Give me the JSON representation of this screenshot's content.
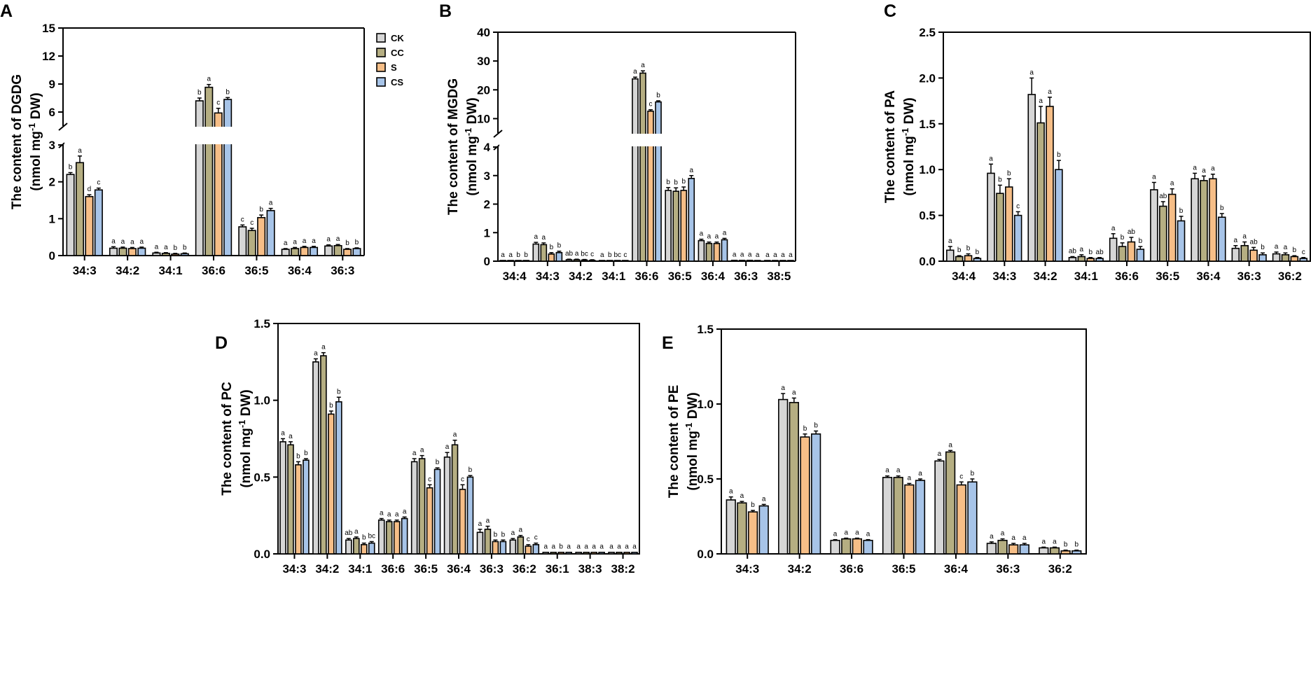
{
  "figure_legend": {
    "entries": [
      {
        "name": "CK",
        "color": "#d6d6d6"
      },
      {
        "name": "CC",
        "color": "#b5ae82"
      },
      {
        "name": "S",
        "color": "#f6be87"
      },
      {
        "name": "CS",
        "color": "#a7c4e8"
      }
    ]
  },
  "chart_data": [
    {
      "panel": "A",
      "type": "bar",
      "ylabel_line1": "The content of DGDG",
      "ylabel_line2_pre": "(nmol mg",
      "ylabel_sup": "-1",
      "ylabel_line2_post": " DW)",
      "categories": [
        "34:3",
        "34:2",
        "34:1",
        "36:6",
        "36:5",
        "36:4",
        "36:3"
      ],
      "series": [
        {
          "name": "CK",
          "values": [
            2.2,
            0.2,
            0.07,
            7.2,
            0.78,
            0.17,
            0.26
          ],
          "errors": [
            0.05,
            0.04,
            0.02,
            0.3,
            0.05,
            0.02,
            0.03
          ],
          "letters": [
            "b",
            "a",
            "a",
            "b",
            "c",
            "a",
            "a"
          ]
        },
        {
          "name": "CC",
          "values": [
            2.52,
            0.2,
            0.06,
            8.65,
            0.68,
            0.19,
            0.27
          ],
          "errors": [
            0.18,
            0.03,
            0.02,
            0.3,
            0.06,
            0.03,
            0.03
          ],
          "letters": [
            "a",
            "a",
            "a",
            "a",
            "c",
            "a",
            "a"
          ]
        },
        {
          "name": "S",
          "values": [
            1.6,
            0.19,
            0.04,
            5.9,
            1.03,
            0.22,
            0.17
          ],
          "errors": [
            0.05,
            0.03,
            0.02,
            0.5,
            0.07,
            0.03,
            0.02
          ],
          "letters": [
            "d",
            "a",
            "b",
            "c",
            "b",
            "a",
            "b"
          ]
        },
        {
          "name": "CS",
          "values": [
            1.78,
            0.2,
            0.05,
            7.35,
            1.22,
            0.22,
            0.19
          ],
          "errors": [
            0.05,
            0.03,
            0.02,
            0.2,
            0.06,
            0.03,
            0.02
          ],
          "letters": [
            "c",
            "a",
            "b",
            "b",
            "a",
            "a",
            "b"
          ]
        }
      ],
      "y_axis": {
        "lower": {
          "range": [
            0,
            3
          ],
          "ticks": [
            0,
            1,
            2,
            3
          ],
          "tick_labels": [
            "0",
            "1",
            "2",
            "3"
          ]
        },
        "upper": {
          "range": [
            4.5,
            15
          ],
          "ticks": [
            6,
            9,
            12,
            15
          ],
          "tick_labels": [
            "6",
            "9",
            "12",
            "15"
          ]
        }
      }
    },
    {
      "panel": "B",
      "type": "bar",
      "ylabel_line1": "The content of MGDG",
      "ylabel_line2_pre": "(nmol mg",
      "ylabel_sup": "-1",
      "ylabel_line2_post": " DW)",
      "categories": [
        "34:4",
        "34:3",
        "34:2",
        "34:1",
        "36:6",
        "36:5",
        "36:4",
        "36:3",
        "38:5"
      ],
      "series": [
        {
          "name": "CK",
          "values": [
            0.01,
            0.6,
            0.05,
            0.01,
            23.8,
            2.48,
            0.72,
            0.03,
            0.01
          ],
          "errors": [
            0,
            0.06,
            0.02,
            0,
            0.6,
            0.1,
            0.05,
            0.01,
            0
          ],
          "letters": [
            "a",
            "a",
            "ab",
            "a",
            "a",
            "b",
            "a",
            "a",
            "a"
          ]
        },
        {
          "name": "CC",
          "values": [
            0.01,
            0.58,
            0.05,
            0.01,
            25.8,
            2.45,
            0.62,
            0.03,
            0.01
          ],
          "errors": [
            0,
            0.06,
            0.02,
            0,
            0.8,
            0.12,
            0.05,
            0.01,
            0
          ],
          "letters": [
            "a",
            "a",
            "a",
            "b",
            "a",
            "b",
            "a",
            "a",
            "a"
          ]
        },
        {
          "name": "S",
          "values": [
            0.01,
            0.25,
            0.04,
            0.01,
            12.6,
            2.48,
            0.62,
            0.03,
            0.01
          ],
          "errors": [
            0,
            0.05,
            0.02,
            0,
            0.5,
            0.12,
            0.05,
            0.01,
            0
          ],
          "letters": [
            "b",
            "b",
            "bc",
            "bc",
            "c",
            "b",
            "a",
            "a",
            "a"
          ]
        },
        {
          "name": "CS",
          "values": [
            0.01,
            0.3,
            0.03,
            0.01,
            15.8,
            2.9,
            0.75,
            0.02,
            0.01
          ],
          "errors": [
            0,
            0.05,
            0.02,
            0,
            0.4,
            0.1,
            0.05,
            0.01,
            0
          ],
          "letters": [
            "b",
            "b",
            "c",
            "c",
            "b",
            "a",
            "a",
            "a",
            "a"
          ]
        }
      ],
      "y_axis": {
        "lower": {
          "range": [
            0,
            4
          ],
          "ticks": [
            0,
            1,
            2,
            3,
            4
          ],
          "tick_labels": [
            "0",
            "1",
            "2",
            "3",
            "4"
          ]
        },
        "upper": {
          "range": [
            5,
            40
          ],
          "ticks": [
            10,
            20,
            30,
            40
          ],
          "tick_labels": [
            "10",
            "20",
            "30",
            "40"
          ]
        }
      }
    },
    {
      "panel": "C",
      "type": "bar",
      "ylabel_line1": "The content of PA",
      "ylabel_line2_pre": "(nmol mg",
      "ylabel_sup": "-1",
      "ylabel_line2_post": " DW)",
      "categories": [
        "34:4",
        "34:3",
        "34:2",
        "34:1",
        "36:6",
        "36:5",
        "36:4",
        "36:3",
        "36:2"
      ],
      "series": [
        {
          "name": "CK",
          "values": [
            0.12,
            0.96,
            1.82,
            0.04,
            0.25,
            0.78,
            0.9,
            0.14,
            0.08
          ],
          "errors": [
            0.04,
            0.1,
            0.18,
            0.01,
            0.05,
            0.08,
            0.06,
            0.03,
            0.02
          ],
          "letters": [
            "a",
            "a",
            "a",
            "ab",
            "a",
            "a",
            "a",
            "a",
            "a"
          ]
        },
        {
          "name": "CC",
          "values": [
            0.05,
            0.74,
            1.51,
            0.05,
            0.16,
            0.6,
            0.88,
            0.17,
            0.07
          ],
          "errors": [
            0.01,
            0.09,
            0.18,
            0.02,
            0.04,
            0.05,
            0.05,
            0.04,
            0.02
          ],
          "letters": [
            "b",
            "b",
            "a",
            "a",
            "b",
            "ab",
            "a",
            "a",
            "a"
          ]
        },
        {
          "name": "S",
          "values": [
            0.06,
            0.81,
            1.69,
            0.03,
            0.21,
            0.73,
            0.9,
            0.12,
            0.05
          ],
          "errors": [
            0.02,
            0.09,
            0.1,
            0.01,
            0.05,
            0.06,
            0.05,
            0.03,
            0.01
          ],
          "letters": [
            "b",
            "b",
            "a",
            "b",
            "ab",
            "a",
            "a",
            "ab",
            "b"
          ]
        },
        {
          "name": "CS",
          "values": [
            0.03,
            0.5,
            1.0,
            0.03,
            0.13,
            0.44,
            0.48,
            0.07,
            0.03
          ],
          "errors": [
            0.01,
            0.04,
            0.1,
            0.01,
            0.03,
            0.05,
            0.04,
            0.02,
            0.01
          ],
          "letters": [
            "b",
            "c",
            "b",
            "ab",
            "b",
            "b",
            "b",
            "b",
            "c"
          ]
        }
      ],
      "ylim": [
        0,
        2.5
      ],
      "ticks": [
        0,
        0.5,
        1.0,
        1.5,
        2.0,
        2.5
      ],
      "tick_labels": [
        "0.0",
        "0.5",
        "1.0",
        "1.5",
        "2.0",
        "2.5"
      ]
    },
    {
      "panel": "D",
      "type": "bar",
      "ylabel_line1": "The content of PC",
      "ylabel_line2_pre": "(nmol mg",
      "ylabel_sup": "-1",
      "ylabel_line2_post": " DW)",
      "categories": [
        "34:3",
        "34:2",
        "34:1",
        "36:6",
        "36:5",
        "36:4",
        "36:3",
        "36:2",
        "36:1",
        "38:3",
        "38:2"
      ],
      "series": [
        {
          "name": "CK",
          "values": [
            0.73,
            1.25,
            0.09,
            0.22,
            0.6,
            0.63,
            0.14,
            0.09,
            0.01,
            0.01,
            0.01
          ],
          "errors": [
            0.02,
            0.02,
            0.01,
            0.01,
            0.02,
            0.03,
            0.02,
            0.01,
            0.002,
            0.002,
            0.002
          ],
          "letters": [
            "a",
            "a",
            "ab",
            "a",
            "a",
            "a",
            "a",
            "a",
            "a",
            "a",
            "a"
          ]
        },
        {
          "name": "CC",
          "values": [
            0.71,
            1.29,
            0.1,
            0.21,
            0.62,
            0.71,
            0.16,
            0.11,
            0.01,
            0.01,
            0.01
          ],
          "errors": [
            0.02,
            0.02,
            0.01,
            0.01,
            0.02,
            0.03,
            0.02,
            0.01,
            0.002,
            0.002,
            0.002
          ],
          "letters": [
            "a",
            "a",
            "a",
            "a",
            "a",
            "a",
            "a",
            "a",
            "a",
            "a",
            "a"
          ]
        },
        {
          "name": "S",
          "values": [
            0.58,
            0.91,
            0.06,
            0.21,
            0.43,
            0.42,
            0.08,
            0.05,
            0.01,
            0.01,
            0.01
          ],
          "errors": [
            0.02,
            0.02,
            0.01,
            0.01,
            0.02,
            0.03,
            0.01,
            0.01,
            0.002,
            0.002,
            0.002
          ],
          "letters": [
            "b",
            "b",
            "b",
            "a",
            "c",
            "c",
            "b",
            "c",
            "b",
            "a",
            "a"
          ]
        },
        {
          "name": "CS",
          "values": [
            0.61,
            0.99,
            0.07,
            0.23,
            0.55,
            0.5,
            0.08,
            0.06,
            0.01,
            0.01,
            0.01
          ],
          "errors": [
            0.01,
            0.03,
            0.01,
            0.01,
            0.01,
            0.01,
            0.01,
            0.01,
            0.002,
            0.002,
            0.002
          ],
          "letters": [
            "b",
            "b",
            "bc",
            "a",
            "b",
            "b",
            "b",
            "c",
            "a",
            "a",
            "a"
          ]
        }
      ],
      "ylim": [
        0,
        1.5
      ],
      "ticks": [
        0,
        0.5,
        1.0,
        1.5
      ],
      "tick_labels": [
        "0.0",
        "0.5",
        "1.0",
        "1.5"
      ]
    },
    {
      "panel": "E",
      "type": "bar",
      "ylabel_line1": "The content of PE",
      "ylabel_line2_pre": "(nmol mg",
      "ylabel_sup": "-1",
      "ylabel_line2_post": " DW)",
      "categories": [
        "34:3",
        "34:2",
        "36:6",
        "36:5",
        "36:4",
        "36:3",
        "36:2"
      ],
      "series": [
        {
          "name": "CK",
          "values": [
            0.36,
            1.03,
            0.09,
            0.51,
            0.62,
            0.07,
            0.04
          ],
          "errors": [
            0.02,
            0.04,
            0.005,
            0.01,
            0.01,
            0.01,
            0.005
          ],
          "letters": [
            "a",
            "a",
            "a",
            "a",
            "a",
            "a",
            "a"
          ]
        },
        {
          "name": "CC",
          "values": [
            0.34,
            1.01,
            0.1,
            0.51,
            0.68,
            0.09,
            0.04
          ],
          "errors": [
            0.01,
            0.03,
            0.005,
            0.01,
            0.01,
            0.01,
            0.005
          ],
          "letters": [
            "a",
            "a",
            "a",
            "a",
            "a",
            "a",
            "a"
          ]
        },
        {
          "name": "S",
          "values": [
            0.28,
            0.78,
            0.1,
            0.46,
            0.46,
            0.06,
            0.02
          ],
          "errors": [
            0.01,
            0.02,
            0.005,
            0.01,
            0.02,
            0.01,
            0.005
          ],
          "letters": [
            "b",
            "b",
            "a",
            "a",
            "c",
            "a",
            "b"
          ]
        },
        {
          "name": "CS",
          "values": [
            0.32,
            0.8,
            0.09,
            0.49,
            0.48,
            0.06,
            0.02
          ],
          "errors": [
            0.01,
            0.02,
            0.005,
            0.01,
            0.02,
            0.01,
            0.005
          ],
          "letters": [
            "a",
            "b",
            "a",
            "a",
            "b",
            "a",
            "b"
          ]
        }
      ],
      "ylim": [
        0,
        1.5
      ],
      "ticks": [
        0,
        0.5,
        1.0,
        1.5
      ],
      "tick_labels": [
        "0.0",
        "0.5",
        "1.0",
        "1.5"
      ]
    }
  ]
}
